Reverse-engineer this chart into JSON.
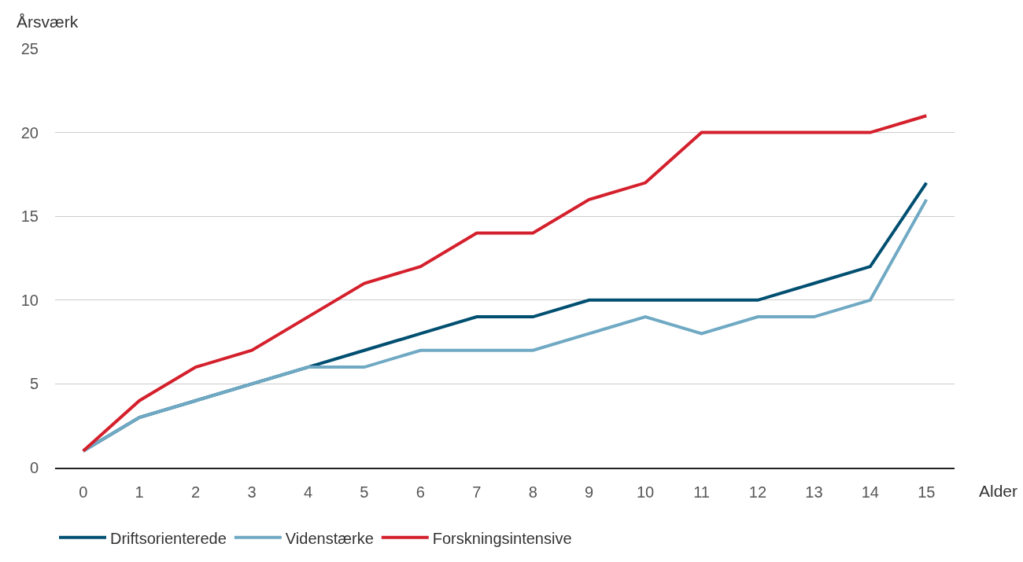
{
  "chart_data": {
    "type": "line",
    "ylabel": "Årsværk",
    "xlabel": "Alder",
    "x": [
      0,
      1,
      2,
      3,
      4,
      5,
      6,
      7,
      8,
      9,
      10,
      11,
      12,
      13,
      14,
      15
    ],
    "xlim": [
      -0.5,
      15.5
    ],
    "xticks": [
      0,
      1,
      2,
      3,
      4,
      5,
      6,
      7,
      8,
      9,
      10,
      11,
      12,
      13,
      14,
      15
    ],
    "ylim": [
      0,
      25
    ],
    "yticks": [
      0,
      5,
      10,
      15,
      20,
      25
    ],
    "grid": "y",
    "legend": "bottom",
    "marker": "none",
    "line_style": "solid",
    "series": [
      {
        "name": "Driftsorienterede",
        "color": "#004f71",
        "values": [
          1,
          3,
          4,
          5,
          6,
          7,
          8,
          9,
          9,
          10,
          10,
          10,
          10,
          11,
          12,
          17
        ]
      },
      {
        "name": "Videnstærke",
        "color": "#6fa9c3",
        "values": [
          1,
          3,
          4,
          5,
          6,
          6,
          7,
          7,
          7,
          8,
          9,
          8,
          9,
          9,
          10,
          16
        ]
      },
      {
        "name": "Forskningsintensive",
        "color": "#d4202c",
        "values": [
          1,
          4,
          6,
          7,
          9,
          11,
          12,
          14,
          14,
          16,
          17,
          20,
          20,
          20,
          20,
          21
        ]
      }
    ]
  }
}
